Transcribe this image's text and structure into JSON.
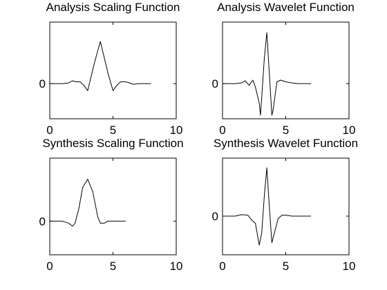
{
  "chart_data": [
    {
      "type": "line",
      "title": "Analysis Scaling Function",
      "xlim": [
        0,
        10
      ],
      "ylim": [
        -1,
        1.75
      ],
      "xticks": [
        0,
        5,
        10
      ],
      "yticks": [
        0
      ],
      "xtick_labels": [
        "0",
        "5",
        "10"
      ],
      "ytick_labels": [
        "0"
      ],
      "grid": false,
      "series": [
        {
          "x": [
            0,
            0.5,
            1,
            1.5,
            1.8,
            2.1,
            2.4,
            2.7,
            3.0,
            3.2,
            3.5,
            4.0,
            4.3,
            4.6,
            5.0,
            5.3,
            5.6,
            6.0,
            6.3,
            6.6,
            7.0,
            7.5,
            8
          ],
          "y": [
            0,
            0,
            0,
            0.02,
            0.08,
            0.05,
            0.05,
            -0.05,
            -0.2,
            0.1,
            0.55,
            1.2,
            0.75,
            0.3,
            -0.2,
            -0.05,
            0.05,
            0.05,
            0.02,
            -0.02,
            0,
            0,
            0
          ]
        }
      ]
    },
    {
      "type": "line",
      "title": "Analysis Wavelet Function",
      "xlim": [
        0,
        10
      ],
      "ylim": [
        -1,
        1.75
      ],
      "xticks": [
        0,
        5,
        10
      ],
      "yticks": [
        0
      ],
      "xtick_labels": [
        "0",
        "5",
        "10"
      ],
      "ytick_labels": [
        "0"
      ],
      "grid": false,
      "series": [
        {
          "x": [
            0,
            0.5,
            1,
            1.5,
            1.8,
            2.1,
            2.4,
            2.6,
            2.9,
            3.0,
            3.1,
            3.3,
            3.5,
            3.7,
            3.9,
            4.0,
            4.3,
            4.6,
            5.0,
            5.5,
            6.0,
            6.5,
            7
          ],
          "y": [
            0,
            0,
            0,
            0.02,
            0.08,
            -0.05,
            0.1,
            -0.1,
            -0.55,
            -0.9,
            -0.4,
            0.7,
            1.45,
            0.3,
            -0.9,
            -0.75,
            0.05,
            0.1,
            0.05,
            0.02,
            0,
            0,
            0
          ]
        }
      ]
    },
    {
      "type": "line",
      "title": "Synthesis Scaling Function",
      "xlim": [
        0,
        10
      ],
      "ylim": [
        -0.8,
        1.5
      ],
      "xticks": [
        0,
        5,
        10
      ],
      "yticks": [
        0
      ],
      "xtick_labels": [
        "0",
        "5",
        "10"
      ],
      "ytick_labels": [
        "0"
      ],
      "grid": false,
      "series": [
        {
          "x": [
            0,
            0.5,
            1,
            1.5,
            1.8,
            2.0,
            2.3,
            2.6,
            3.0,
            3.4,
            3.8,
            4.0,
            4.3,
            4.6,
            5.0,
            5.5,
            6
          ],
          "y": [
            0,
            0,
            0,
            -0.05,
            -0.12,
            -0.05,
            0.3,
            0.8,
            1.0,
            0.7,
            0.1,
            -0.05,
            -0.05,
            0,
            0,
            0,
            0
          ]
        }
      ]
    },
    {
      "type": "line",
      "title": "Synthesis Wavelet Function",
      "xlim": [
        0,
        10
      ],
      "ylim": [
        -0.8,
        1.2
      ],
      "xticks": [
        0,
        5,
        10
      ],
      "yticks": [
        0
      ],
      "xtick_labels": [
        "0",
        "5",
        "10"
      ],
      "ytick_labels": [
        "0"
      ],
      "grid": false,
      "series": [
        {
          "x": [
            0,
            0.5,
            1,
            1.5,
            2.0,
            2.3,
            2.6,
            2.9,
            3.1,
            3.3,
            3.5,
            3.7,
            3.9,
            4.1,
            4.4,
            4.7,
            5.0,
            5.5,
            6.0,
            6.5,
            7
          ],
          "y": [
            0,
            0,
            0,
            0.03,
            0.02,
            -0.08,
            -0.15,
            -0.6,
            -0.35,
            0.4,
            1.0,
            0.2,
            -0.55,
            -0.35,
            -0.05,
            0.02,
            0.02,
            0,
            0,
            0,
            0
          ]
        }
      ]
    }
  ]
}
